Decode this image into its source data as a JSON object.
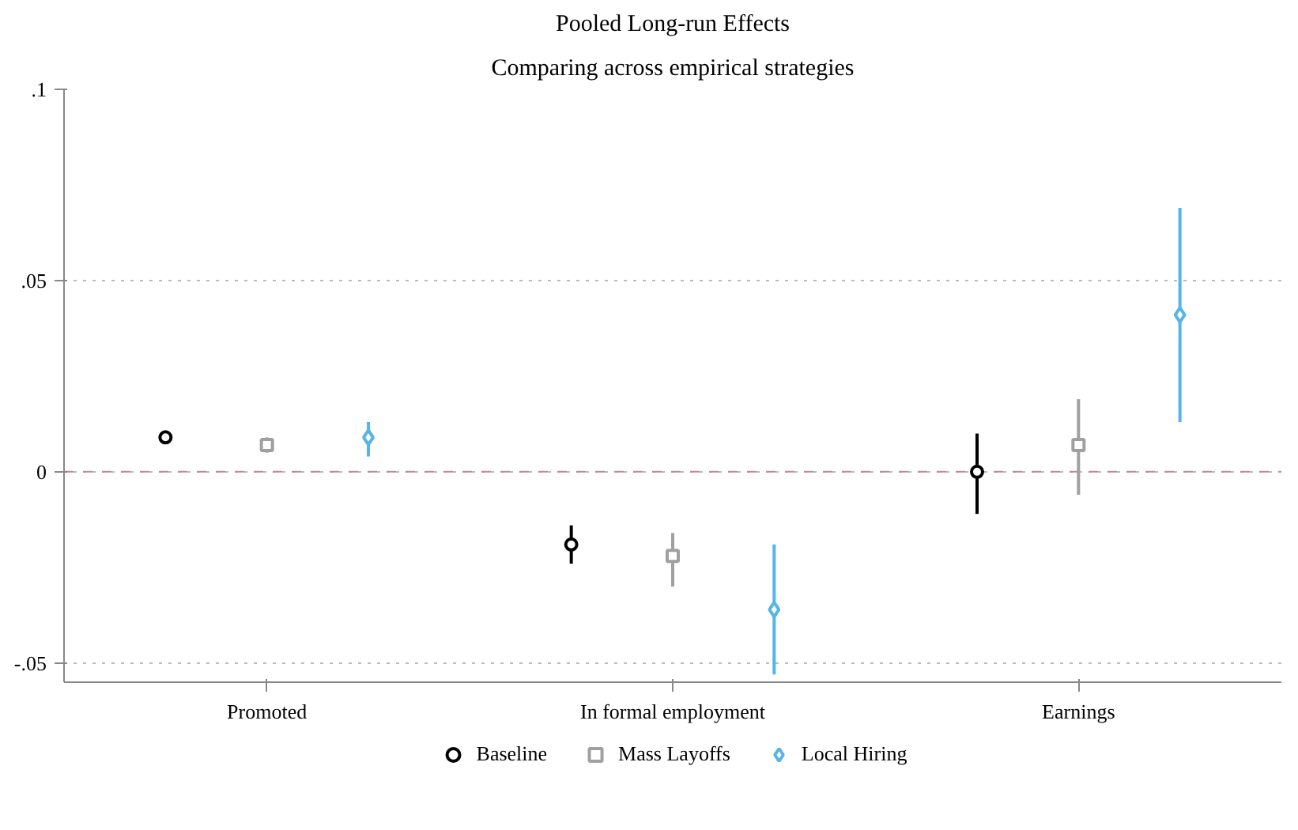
{
  "chart_data": {
    "type": "scatter",
    "title": "Pooled Long-run Effects",
    "subtitle": "Comparing across empirical strategies",
    "categories": [
      "Promoted",
      "In formal employment",
      "Earnings"
    ],
    "series": [
      {
        "name": "Baseline",
        "color": "#000000",
        "marker": "circle",
        "values": [
          0.009,
          -0.019,
          0.0
        ],
        "errors": [
          [
            0.008,
            0.01
          ],
          [
            -0.024,
            -0.014
          ],
          [
            -0.011,
            0.01
          ]
        ]
      },
      {
        "name": "Mass Layoffs",
        "color": "#a0a0a0",
        "marker": "square",
        "values": [
          0.007,
          -0.022,
          0.007
        ],
        "errors": [
          [
            0.005,
            0.009
          ],
          [
            -0.03,
            -0.016
          ],
          [
            -0.006,
            0.019
          ]
        ]
      },
      {
        "name": "Local Hiring",
        "color": "#56b4e9",
        "marker": "diamond",
        "values": [
          0.009,
          -0.036,
          0.041
        ],
        "errors": [
          [
            0.004,
            0.013
          ],
          [
            -0.053,
            -0.019
          ],
          [
            0.013,
            0.069
          ]
        ]
      }
    ],
    "ylim": [
      -0.055,
      0.1
    ],
    "yticks": [
      {
        "value": -0.05,
        "label": "-.05"
      },
      {
        "value": 0,
        "label": "0"
      },
      {
        "value": 0.05,
        "label": ".05"
      },
      {
        "value": 0.1,
        "label": ".1"
      }
    ],
    "grid": "y",
    "legend": "bottom",
    "ref_lines": [
      {
        "axis": "y",
        "value": 0,
        "color": "#c08898",
        "line_style": "dashed"
      }
    ]
  }
}
